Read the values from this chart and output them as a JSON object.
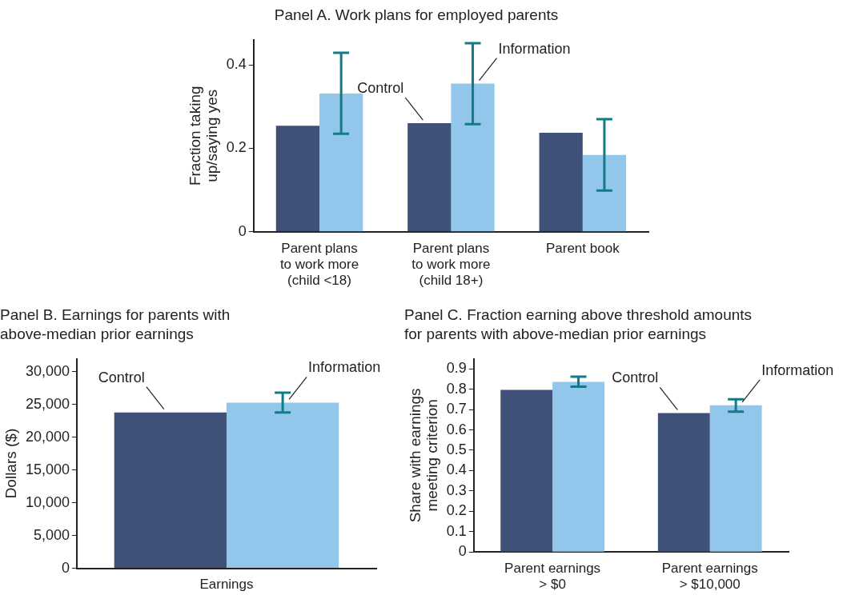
{
  "chart_data": [
    {
      "type": "bar",
      "title": "Panel A. Work plans for employed parents",
      "ylabel": "Fraction taking\nup/saying yes",
      "categories": [
        "Parent plans\nto work more\n(child <18)",
        "Parent plans\nto work more\n(child 18+)",
        "Parent book"
      ],
      "series": [
        {
          "name": "Control",
          "color": "#3f5079",
          "values": [
            0.254,
            0.26,
            0.237
          ]
        },
        {
          "name": "Information",
          "color": "#92c7eb",
          "values": [
            0.331,
            0.355,
            0.184
          ],
          "errors": [
            [
              0.235,
              0.429
            ],
            [
              0.258,
              0.452
            ],
            [
              0.099,
              0.27
            ]
          ]
        }
      ],
      "ylim": [
        0,
        0.46
      ],
      "yticks": [
        0,
        0.2,
        0.4
      ]
    },
    {
      "type": "bar",
      "title": "Panel B. Earnings for parents with\nabove-median prior earnings",
      "ylabel": "Dollars ($)",
      "categories": [
        "Earnings"
      ],
      "series": [
        {
          "name": "Control",
          "color": "#3f5079",
          "values": [
            23800
          ]
        },
        {
          "name": "Information",
          "color": "#92c7eb",
          "values": [
            25300
          ],
          "errors": [
            [
              23800,
              26800
            ]
          ]
        }
      ],
      "ylim": [
        0,
        32000
      ],
      "yticks": [
        {
          "value": 0,
          "label": "0"
        },
        {
          "value": 5000,
          "label": "5,000"
        },
        {
          "value": 10000,
          "label": "10,000"
        },
        {
          "value": 15000,
          "label": "15,000"
        },
        {
          "value": 20000,
          "label": "20,000"
        },
        {
          "value": 25000,
          "label": "25,000"
        },
        {
          "value": 30000,
          "label": "30,000"
        }
      ]
    },
    {
      "type": "bar",
      "title": "Panel C. Fraction earning above threshold amounts\nfor parents with above-median prior earnings",
      "ylabel": "Share with earnings\nmeeting criterion",
      "categories": [
        "Parent earnings\n> $0",
        "Parent earnings\n> $10,000"
      ],
      "series": [
        {
          "name": "Control",
          "color": "#3f5079",
          "values": [
            0.797,
            0.683
          ]
        },
        {
          "name": "Information",
          "color": "#92c7eb",
          "values": [
            0.836,
            0.721
          ],
          "errors": [
            [
              0.812,
              0.862
            ],
            [
              0.69,
              0.751
            ]
          ]
        }
      ],
      "ylim": [
        0,
        0.95
      ],
      "yticks": [
        0,
        0.1,
        0.2,
        0.3,
        0.4,
        0.5,
        0.6,
        0.7,
        0.8,
        0.9
      ]
    }
  ]
}
